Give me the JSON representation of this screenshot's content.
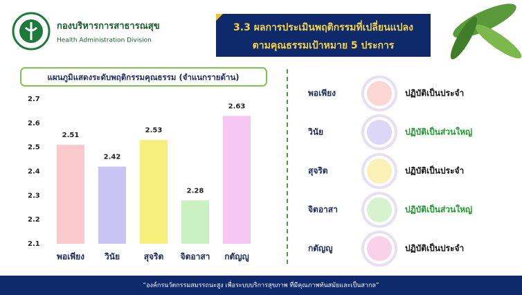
{
  "header": {
    "org_name": "กองบริหารการสาธารณสุข",
    "org_name_en": "Health Administration Division",
    "title_line1": "3.3 ผลการประเมินพฤติกรรมที่เปลี่ยนแปลง",
    "title_line2": "ตามคุณธรรมเป้าหมาย 5 ประการ"
  },
  "chart_data": {
    "type": "bar",
    "title": "แผนภูมิแสดงระดับพฤติกรรมคุณธรรม (จำแนกรายด้าน)",
    "categories": [
      "พอเพียง",
      "วินัย",
      "สุจริต",
      "จิตอาสา",
      "กตัญญู"
    ],
    "values": [
      2.51,
      2.42,
      2.53,
      2.28,
      2.63
    ],
    "colors": [
      "#f9c9cc",
      "#c9c4f4",
      "#f6ef7c",
      "#c9f1c2",
      "#f7c7f4"
    ],
    "ylim": [
      2.1,
      2.7
    ],
    "yticks": [
      2.1,
      2.2,
      2.3,
      2.4,
      2.5,
      2.6,
      2.7
    ]
  },
  "results": [
    {
      "name": "พอเพียง",
      "status": "ปฏิบัติเป็นประจำ",
      "color": "#111111"
    },
    {
      "name": "วินัย",
      "status": "ปฏิบัติเป็นส่วนใหญ่",
      "color": "#1f9a2e"
    },
    {
      "name": "สุจริต",
      "status": "ปฏิบัติเป็นประจำ",
      "color": "#111111"
    },
    {
      "name": "จิตอาสา",
      "status": "ปฏิบัติเป็นส่วนใหญ่",
      "color": "#1f9a2e"
    },
    {
      "name": "กตัญญู",
      "status": "ปฏิบัติเป็นประจำ",
      "color": "#111111"
    }
  ],
  "footer": {
    "quote": "“องค์กรนวัตกรรมสมรรถนะสูง เพื่อระบบบริการสุขภาพ ที่มีคุณภาพทันสมัยและเป็นสากล”"
  }
}
